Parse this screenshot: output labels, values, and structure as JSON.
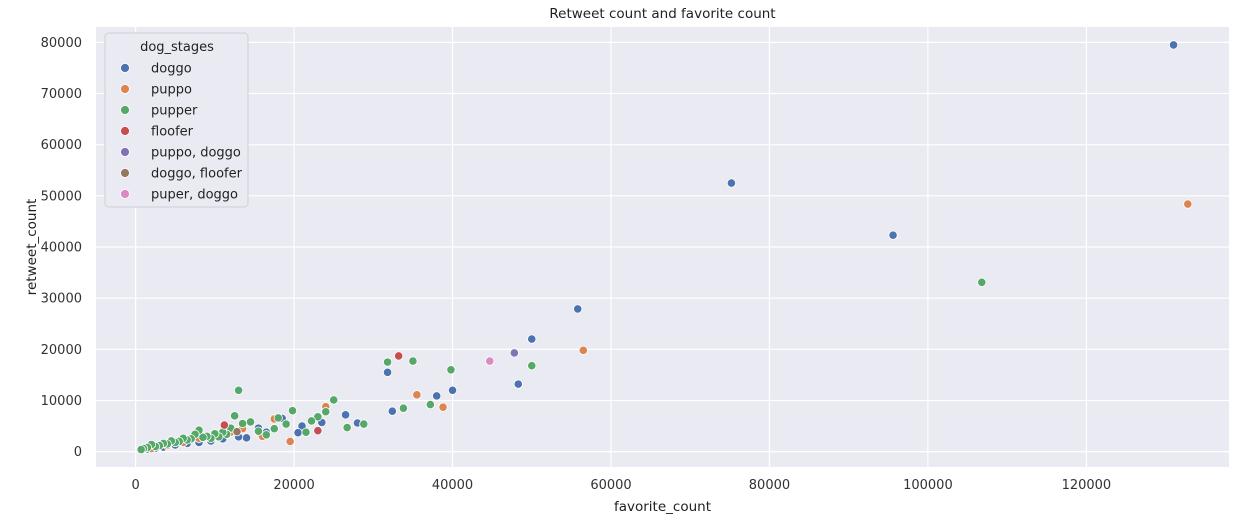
{
  "chart_data": {
    "type": "scatter",
    "title": "Retweet count and favorite count",
    "xlabel": "favorite_count",
    "ylabel": "retweet_count",
    "xlim": [
      -5000,
      138000
    ],
    "ylim": [
      -3000,
      83000
    ],
    "x_ticks": [
      0,
      20000,
      40000,
      60000,
      80000,
      100000,
      120000
    ],
    "y_ticks": [
      0,
      10000,
      20000,
      30000,
      40000,
      50000,
      60000,
      70000,
      80000
    ],
    "grid": true,
    "background": "#eaeaf2",
    "legend": {
      "title": "dog_stages",
      "placement": "top-left"
    },
    "series": [
      {
        "name": "doggo",
        "color": "#4c72b0",
        "points": [
          [
            131000,
            79500
          ],
          [
            75200,
            52500
          ],
          [
            95600,
            42300
          ],
          [
            55800,
            27900
          ],
          [
            50000,
            22000
          ],
          [
            48300,
            13200
          ],
          [
            40000,
            12000
          ],
          [
            38000,
            10900
          ],
          [
            32400,
            7900
          ],
          [
            31800,
            15500
          ],
          [
            28000,
            5600
          ],
          [
            26500,
            7200
          ],
          [
            23500,
            5700
          ],
          [
            21000,
            5000
          ],
          [
            20500,
            3700
          ],
          [
            18500,
            6500
          ],
          [
            16500,
            3800
          ],
          [
            15500,
            4600
          ],
          [
            14000,
            2700
          ],
          [
            13000,
            2900
          ],
          [
            11000,
            2500
          ],
          [
            9500,
            2100
          ],
          [
            8000,
            1800
          ],
          [
            6500,
            1600
          ],
          [
            5000,
            1300
          ],
          [
            3500,
            900
          ],
          [
            2500,
            700
          ],
          [
            1500,
            500
          ]
        ]
      },
      {
        "name": "puppo",
        "color": "#dd8452",
        "points": [
          [
            132800,
            48400
          ],
          [
            56500,
            19800
          ],
          [
            38800,
            8700
          ],
          [
            35500,
            11100
          ],
          [
            24000,
            8800
          ],
          [
            19500,
            2000
          ],
          [
            17500,
            6400
          ],
          [
            16000,
            3000
          ],
          [
            13500,
            4500
          ],
          [
            12000,
            3800
          ],
          [
            10000,
            3200
          ],
          [
            8000,
            2600
          ],
          [
            6000,
            1800
          ],
          [
            4000,
            1200
          ],
          [
            2000,
            600
          ]
        ]
      },
      {
        "name": "pupper",
        "color": "#55a868",
        "points": [
          [
            106800,
            33100
          ],
          [
            50000,
            16800
          ],
          [
            39800,
            16000
          ],
          [
            35000,
            17700
          ],
          [
            31800,
            17500
          ],
          [
            37200,
            9200
          ],
          [
            33800,
            8500
          ],
          [
            28800,
            5400
          ],
          [
            26700,
            4700
          ],
          [
            25000,
            10100
          ],
          [
            24000,
            7800
          ],
          [
            23000,
            6800
          ],
          [
            22200,
            6000
          ],
          [
            21500,
            3800
          ],
          [
            19800,
            8000
          ],
          [
            19000,
            5400
          ],
          [
            18000,
            6600
          ],
          [
            17500,
            4500
          ],
          [
            16500,
            3300
          ],
          [
            15500,
            4000
          ],
          [
            14500,
            5800
          ],
          [
            13500,
            5500
          ],
          [
            13000,
            12000
          ],
          [
            12500,
            7000
          ],
          [
            12000,
            4600
          ],
          [
            11500,
            3400
          ],
          [
            11000,
            3800
          ],
          [
            10500,
            2900
          ],
          [
            10000,
            3500
          ],
          [
            9500,
            2600
          ],
          [
            9000,
            3000
          ],
          [
            8500,
            2800
          ],
          [
            8000,
            4200
          ],
          [
            7500,
            3400
          ],
          [
            7000,
            2500
          ],
          [
            6500,
            2300
          ],
          [
            6000,
            2600
          ],
          [
            5500,
            2000
          ],
          [
            5000,
            1800
          ],
          [
            4500,
            2100
          ],
          [
            4000,
            1500
          ],
          [
            3500,
            1600
          ],
          [
            3000,
            1200
          ],
          [
            2500,
            1000
          ],
          [
            2000,
            1400
          ],
          [
            1500,
            800
          ],
          [
            1000,
            600
          ],
          [
            700,
            400
          ]
        ]
      },
      {
        "name": "floofer",
        "color": "#c44e52",
        "points": [
          [
            33200,
            18700
          ],
          [
            23000,
            4100
          ],
          [
            11200,
            5200
          ]
        ]
      },
      {
        "name": "puppo, doggo",
        "color": "#8172b3",
        "points": [
          [
            47800,
            19300
          ]
        ]
      },
      {
        "name": "doggo, floofer",
        "color": "#937860",
        "points": [
          [
            12800,
            3900
          ]
        ]
      },
      {
        "name": "puper, doggo",
        "color": "#da8bc3",
        "points": [
          [
            44700,
            17700
          ]
        ]
      }
    ]
  }
}
